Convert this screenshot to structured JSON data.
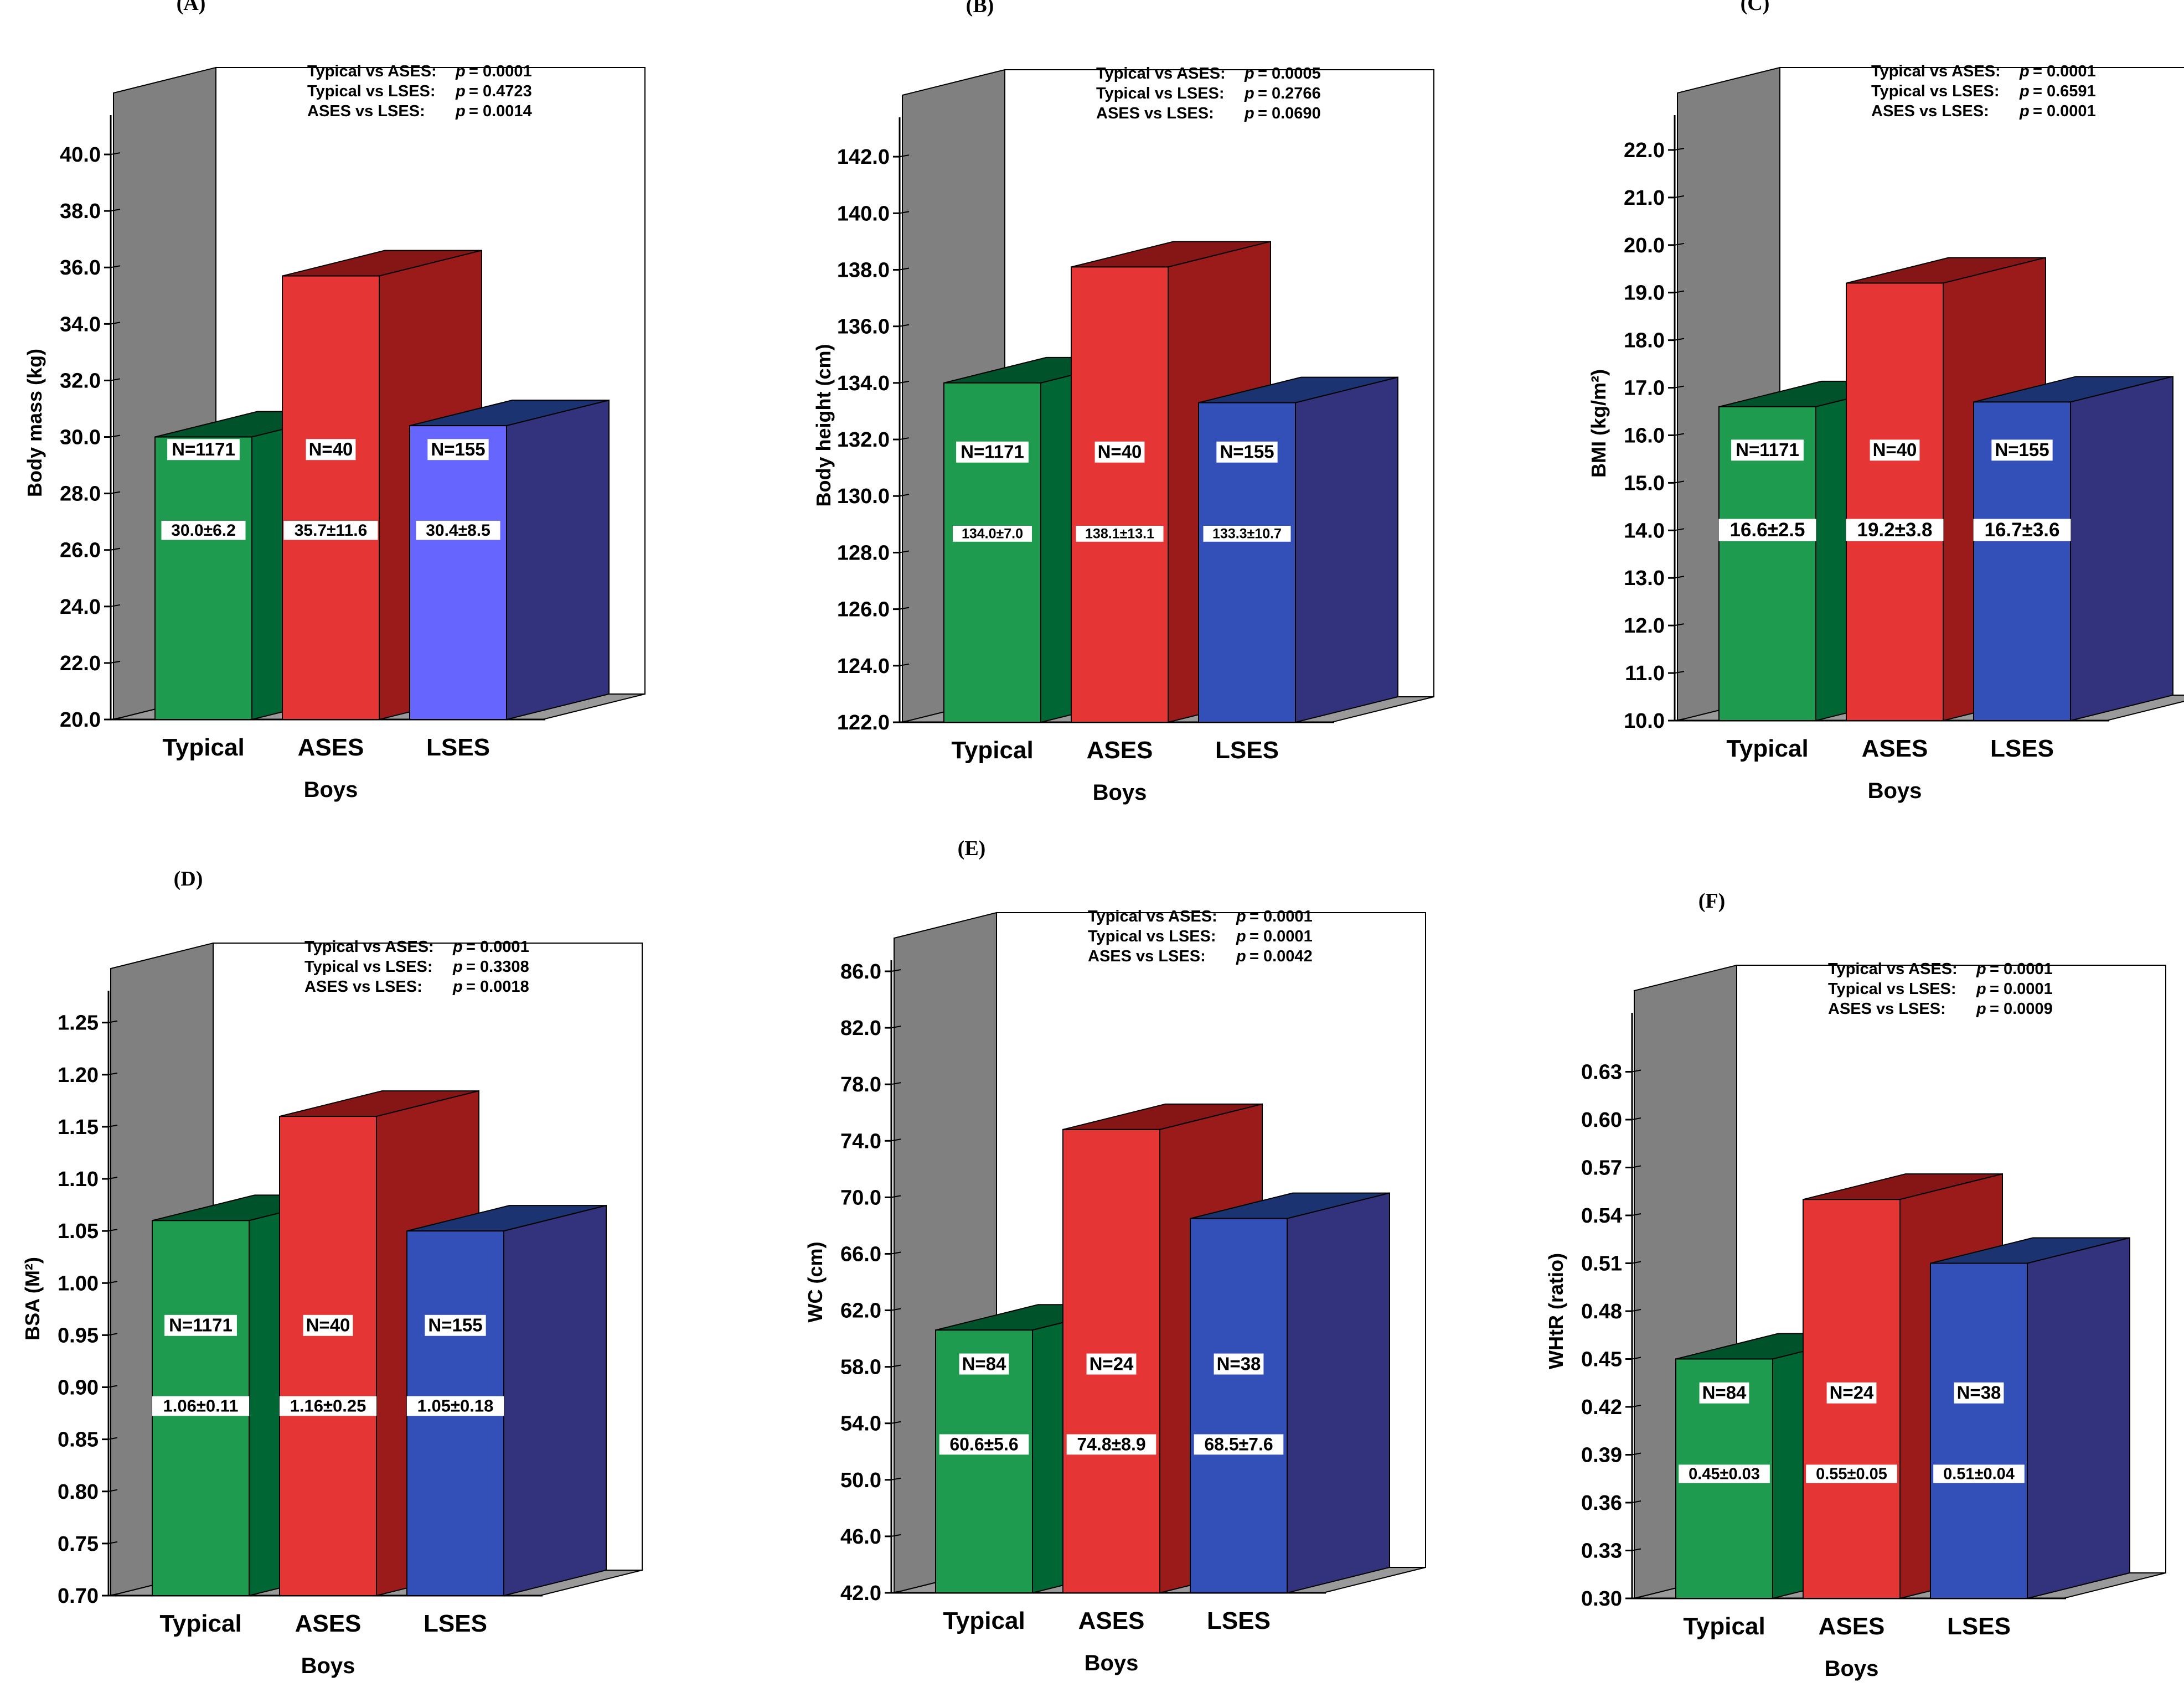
{
  "chart_data": [
    {
      "panel": "(A)",
      "type": "bar",
      "xlabel": "Boys",
      "ylabel": "Body mass (kg)",
      "ylim": [
        20,
        41
      ],
      "ticks": [
        20,
        22,
        24,
        26,
        28,
        30,
        32,
        34,
        36,
        38,
        40
      ],
      "tick_decimals": 1,
      "categories": [
        "Typical",
        "ASES",
        "LSES"
      ],
      "values": [
        30.0,
        35.7,
        30.4
      ],
      "n_labels": [
        "N=1171",
        "N=40",
        "N=155"
      ],
      "value_labels": [
        "30.0±6.2",
        "35.7±11.6",
        "30.4±8.5"
      ],
      "pvalues": [
        {
          "comparison": "Typical vs ASES:",
          "p": "= 0.0001"
        },
        {
          "comparison": "Typical vs LSES:",
          "p": "= 0.4723"
        },
        {
          "comparison": "ASES vs LSES:",
          "p": "= 0.0014"
        }
      ]
    },
    {
      "panel": "(B)",
      "type": "bar",
      "xlabel": "Boys",
      "ylabel": "Body height (cm)",
      "ylim": [
        122,
        143
      ],
      "ticks": [
        122,
        124,
        126,
        128,
        130,
        132,
        134,
        136,
        138,
        140,
        142
      ],
      "tick_decimals": 1,
      "categories": [
        "Typical",
        "ASES",
        "LSES"
      ],
      "values": [
        134.0,
        138.1,
        133.3
      ],
      "n_labels": [
        "N=1171",
        "N=40",
        "N=155"
      ],
      "value_labels": [
        "134.0±7.0",
        "138.1±13.1",
        "133.3±10.7"
      ],
      "pvalues": [
        {
          "comparison": "Typical vs ASES:",
          "p": "= 0.0005"
        },
        {
          "comparison": "Typical vs LSES:",
          "p": "= 0.2766"
        },
        {
          "comparison": "ASES vs LSES:",
          "p": "= 0.0690"
        }
      ]
    },
    {
      "panel": "(C)",
      "type": "bar",
      "xlabel": "Boys",
      "ylabel": "BMI (kg/m²)",
      "ylim": [
        10,
        22.5
      ],
      "ticks": [
        10,
        11,
        12,
        13,
        14,
        15,
        16,
        17,
        18,
        19,
        20,
        21,
        22
      ],
      "tick_decimals": 1,
      "categories": [
        "Typical",
        "ASES",
        "LSES"
      ],
      "values": [
        16.6,
        19.2,
        16.7
      ],
      "n_labels": [
        "N=1171",
        "N=40",
        "N=155"
      ],
      "value_labels": [
        "16.6±2.5",
        "19.2±3.8",
        "16.7±3.6"
      ],
      "pvalues": [
        {
          "comparison": "Typical vs ASES:",
          "p": "= 0.0001"
        },
        {
          "comparison": "Typical vs LSES:",
          "p": "= 0.6591"
        },
        {
          "comparison": "ASES vs LSES:",
          "p": "= 0.0001"
        }
      ]
    },
    {
      "panel": "(D)",
      "type": "bar",
      "xlabel": "Boys",
      "ylabel": "BSA (M²)",
      "ylim": [
        0.7,
        1.27
      ],
      "ticks": [
        0.7,
        0.75,
        0.8,
        0.85,
        0.9,
        0.95,
        1.0,
        1.05,
        1.1,
        1.15,
        1.2,
        1.25
      ],
      "tick_decimals": 2,
      "categories": [
        "Typical",
        "ASES",
        "LSES"
      ],
      "values": [
        1.06,
        1.16,
        1.05
      ],
      "n_labels": [
        "N=1171",
        "N=40",
        "N=155"
      ],
      "value_labels": [
        "1.06±0.11",
        "1.16±0.25",
        "1.05±0.18"
      ],
      "pvalues": [
        {
          "comparison": "Typical vs ASES:",
          "p": "= 0.0001"
        },
        {
          "comparison": "Typical vs LSES:",
          "p": "= 0.3308"
        },
        {
          "comparison": "ASES vs LSES:",
          "p": "= 0.0018"
        }
      ]
    },
    {
      "panel": "(E)",
      "type": "bar",
      "xlabel": "Boys",
      "ylabel": "WC (cm)",
      "ylim": [
        42,
        86
      ],
      "ticks": [
        42,
        46,
        50,
        54,
        58,
        62,
        66,
        70,
        74,
        78,
        82,
        86
      ],
      "tick_decimals": 1,
      "categories": [
        "Typical",
        "ASES",
        "LSES"
      ],
      "values": [
        60.6,
        74.8,
        68.5
      ],
      "n_labels": [
        "N=84",
        "N=24",
        "N=38"
      ],
      "value_labels": [
        "60.6±5.6",
        "74.8±8.9",
        "68.5±7.6"
      ],
      "pvalues": [
        {
          "comparison": "Typical vs ASES:",
          "p": "= 0.0001"
        },
        {
          "comparison": "Typical vs LSES:",
          "p": "= 0.0001"
        },
        {
          "comparison": "ASES vs LSES:",
          "p": "= 0.0042"
        }
      ]
    },
    {
      "panel": "(F)",
      "type": "bar",
      "xlabel": "Boys",
      "ylabel": "WHtR (ratio)",
      "ylim": [
        0.3,
        0.66
      ],
      "ticks": [
        0.3,
        0.33,
        0.36,
        0.39,
        0.42,
        0.45,
        0.48,
        0.51,
        0.54,
        0.57,
        0.6,
        0.63
      ],
      "tick_decimals": 2,
      "categories": [
        "Typical",
        "ASES",
        "LSES"
      ],
      "values": [
        0.45,
        0.55,
        0.51
      ],
      "n_labels": [
        "N=84",
        "N=24",
        "N=38"
      ],
      "value_labels": [
        "0.45±0.03",
        "0.55±0.05",
        "0.51±0.04"
      ],
      "pvalues": [
        {
          "comparison": "Typical vs ASES:",
          "p": "= 0.0001"
        },
        {
          "comparison": "Typical vs LSES:",
          "p": "= 0.0001"
        },
        {
          "comparison": "ASES vs LSES:",
          "p": "= 0.0009"
        }
      ]
    }
  ],
  "p_symbol": "p",
  "colors": {
    "typical_front": "#1e9b4f",
    "typical_side": "#006633",
    "typical_top": "#00522a",
    "ases_front": "#e53535",
    "ases_side": "#9b1a1a",
    "ases_top": "#861515",
    "lses_front": "#3350b8",
    "lses_side": "#33337d",
    "lses_top": "#1b3471",
    "lses_front_panel_a": "#6666ff",
    "wall": "#808080",
    "floor": "#9a9a9a"
  }
}
